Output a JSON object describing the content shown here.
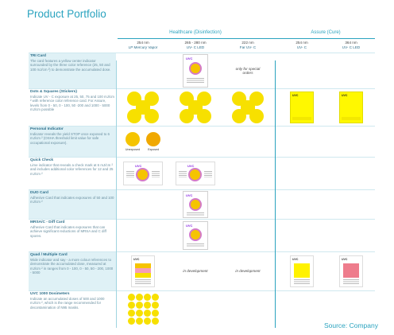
{
  "title": "Product Portfolio",
  "source": "Source: Company",
  "groups": {
    "healthcare": "Healthcare  (Disinfection)",
    "assure": "Assure (Cure)"
  },
  "columns": [
    {
      "l1": "254 nm",
      "l2": "LP Mercury Vapor"
    },
    {
      "l1": "265 - 280 nm",
      "l2": "UV- C LED"
    },
    {
      "l1": "222 nm",
      "l2": "Far UV- C"
    },
    {
      "l1": "254 nm",
      "l2": "UV- C"
    },
    {
      "l1": "364 nm",
      "l2": "UV- C LED"
    }
  ],
  "logo": {
    "uv": "UVC",
    "brand": "DOSIMETER"
  },
  "rows": [
    {
      "title": "TRI Card",
      "text": "The card features a yellow center indicator surrounded by the three color reference (25, 50 and 100   mJ/cm ²) to demonstrate the accumulated dose.",
      "note3": "only for special orders"
    },
    {
      "title": "Dots & Squares (Stickers)",
      "text": "Indicate UV - C exposure at 25, 50, 75 and 100 mJ/cm ² with reference color reference card.  For Assure, levels from 0 - 50, 0 - 100, 50 -200 and 1000 - 5000 mJ/cm possible"
    },
    {
      "title": "Personal Indicator",
      "text": "Indicator reveals the yield STOP once exposed to  6 mJ/cm ² (OSHA threshold limit value for safe occupational exposure).",
      "unexposed": "Unexposed",
      "exposed": "Exposed"
    },
    {
      "title": "Quick Check",
      "text": "Lime indicator that reveals a check mark at 6   mJ/cm ² and includes additional color   references for 12 and 25 mJ/cm ²"
    },
    {
      "title": "DUO Card",
      "text": "Adhesive Card that indicates exposures of 50 and 100   mJ/cm ²"
    },
    {
      "title": "MRSA/C - Diff Card",
      "text": "Adhesive Card that indicates exposures that can achieve significant reductions of MRSA and C   diff spores."
    },
    {
      "title": "Quad / Multiple Card",
      "text": "Wide indicator and say - a more colour references to demonstrate the accumulated dose, measured at mJ/cm ² in ranges from 0 - 100, 0 - 50, 50 - 200, 1000 - 5000",
      "note2": "in development",
      "note3": "in development"
    },
    {
      "title": "UVC 1000 Dosimeters",
      "text": "Indicate   an accumulated doses of      500 and 1000 mJ/cm ², which is the range recommended for decontamination of N95 masks."
    }
  ]
}
